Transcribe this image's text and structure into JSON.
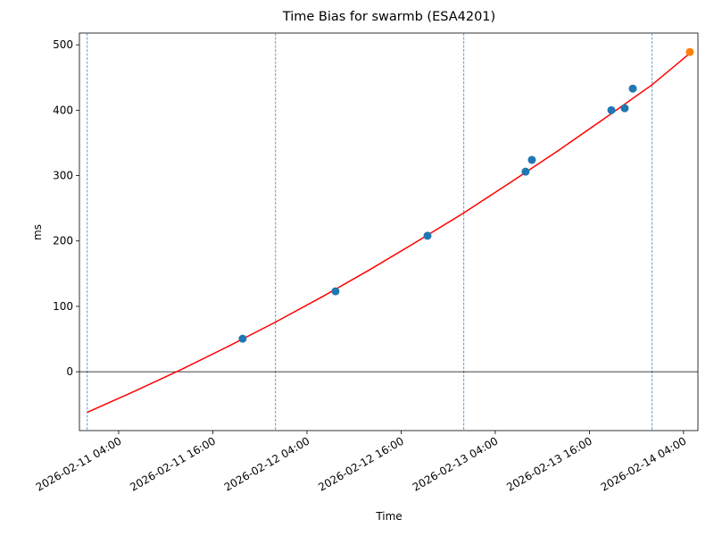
{
  "chart_data": {
    "type": "scatter",
    "title": "Time Bias for swarmb (ESA4201)",
    "x_label": "Time",
    "y_label": "ms",
    "xlim": [
      "2026-02-10 23:00",
      "2026-02-14 05:50"
    ],
    "ylim": [
      -90,
      518
    ],
    "xticks": [
      "2026-02-11 04:00",
      "2026-02-11 16:00",
      "2026-02-12 04:00",
      "2026-02-12 16:00",
      "2026-02-13 04:00",
      "2026-02-13 16:00",
      "2026-02-14 04:00"
    ],
    "yticks": [
      0,
      100,
      200,
      300,
      400,
      500
    ],
    "vlines": {
      "color": "#1f77b4",
      "x": [
        "2026-02-11 00:00",
        "2026-02-12 00:00",
        "2026-02-13 00:00",
        "2026-02-14 00:00"
      ]
    },
    "hline": {
      "color": "#000000",
      "y": 0
    },
    "series": [
      {
        "kind": "line",
        "color": "#ff0000",
        "x": [
          "2026-02-11 00:00",
          "2026-02-11 06:00",
          "2026-02-11 12:00",
          "2026-02-11 18:00",
          "2026-02-12 00:00",
          "2026-02-12 06:00",
          "2026-02-12 12:00",
          "2026-02-12 18:00",
          "2026-02-13 00:00",
          "2026-02-13 06:00",
          "2026-02-13 12:00",
          "2026-02-13 18:00",
          "2026-02-14 00:00",
          "2026-02-14 04:48"
        ],
        "values": [
          -62,
          -30,
          3.5,
          39,
          76,
          115,
          156,
          199,
          243,
          290,
          338,
          388,
          439,
          487
        ]
      },
      {
        "kind": "marker",
        "color": "#1f77b4",
        "x": [
          "2026-02-11 19:48",
          "2026-02-12 07:38",
          "2026-02-12 19:22",
          "2026-02-13 07:52",
          "2026-02-13 08:40",
          "2026-02-13 18:48",
          "2026-02-13 20:30",
          "2026-02-13 21:32"
        ],
        "values": [
          50.5,
          123,
          208,
          306,
          324,
          400,
          403,
          433
        ]
      },
      {
        "kind": "marker",
        "color": "#ff7f0e",
        "x": [
          "2026-02-14 04:48"
        ],
        "values": [
          489
        ]
      }
    ]
  }
}
